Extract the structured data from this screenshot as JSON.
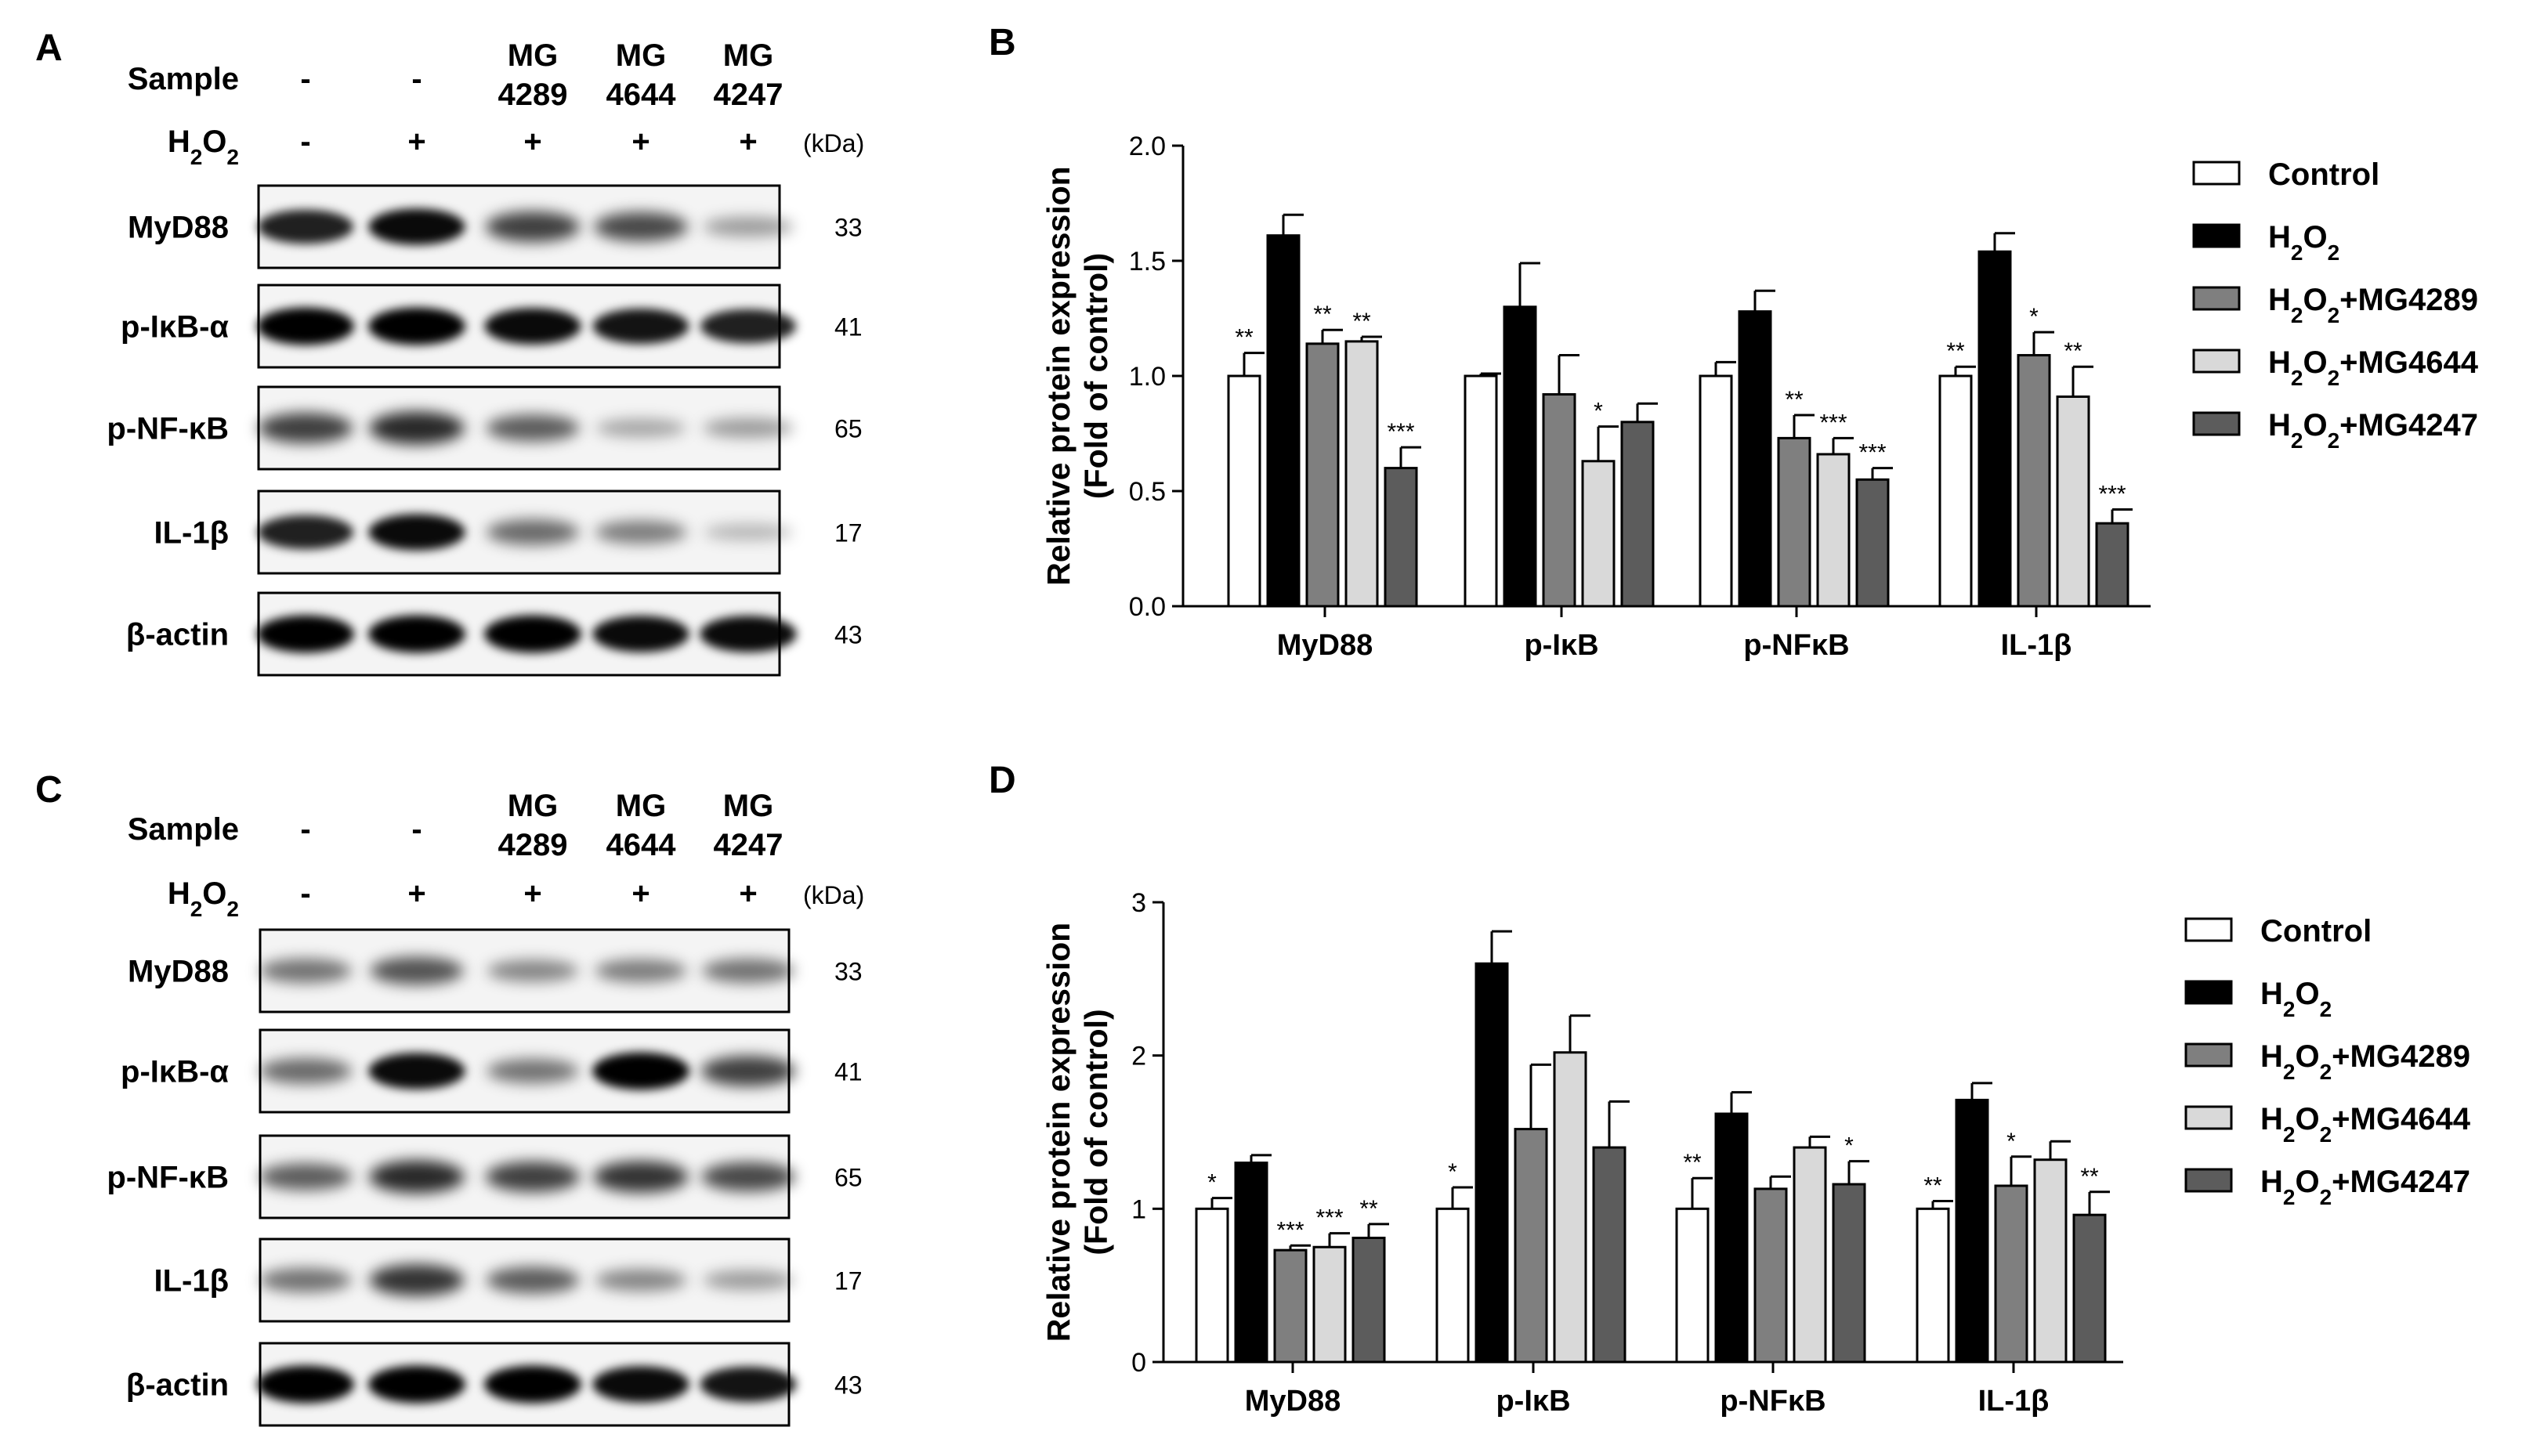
{
  "figure": {
    "panels": {
      "A": {
        "label": "A",
        "sample_header": "Sample",
        "sample_values": [
          "-",
          "-",
          "MG\n4289",
          "MG\n4644",
          "MG\n4247"
        ],
        "h2o2_header": "H2O2",
        "h2o2_values": [
          "-",
          "+",
          "+",
          "+",
          "+"
        ],
        "kda_header": "(kDa)",
        "blots": [
          {
            "name": "MyD88",
            "kda": "33",
            "intensities": [
              0.85,
              0.95,
              0.7,
              0.65,
              0.25
            ]
          },
          {
            "name": "p-IκB-α",
            "kda": "41",
            "intensities": [
              1.0,
              1.0,
              0.95,
              0.9,
              0.85
            ]
          },
          {
            "name": "p-NF-κB",
            "kda": "65",
            "intensities": [
              0.7,
              0.8,
              0.55,
              0.2,
              0.25
            ]
          },
          {
            "name": "IL-1β",
            "kda": "17",
            "intensities": [
              0.85,
              0.95,
              0.5,
              0.4,
              0.12
            ]
          },
          {
            "name": "β-actin",
            "kda": "43",
            "intensities": [
              1.0,
              1.0,
              1.0,
              0.95,
              0.95
            ]
          }
        ]
      },
      "C": {
        "label": "C",
        "sample_header": "Sample",
        "sample_values": [
          "-",
          "-",
          "MG\n4289",
          "MG\n4644",
          "MG\n4247"
        ],
        "h2o2_header": "H2O2",
        "h2o2_values": [
          "-",
          "+",
          "+",
          "+",
          "+"
        ],
        "kda_header": "(kDa)",
        "blots": [
          {
            "name": "MyD88",
            "kda": "33",
            "intensities": [
              0.45,
              0.6,
              0.35,
              0.4,
              0.45
            ]
          },
          {
            "name": "p-IκB-α",
            "kda": "41",
            "intensities": [
              0.5,
              0.95,
              0.45,
              1.0,
              0.7
            ]
          },
          {
            "name": "p-NF-κB",
            "kda": "65",
            "intensities": [
              0.55,
              0.8,
              0.7,
              0.75,
              0.65
            ]
          },
          {
            "name": "IL-1β",
            "kda": "17",
            "intensities": [
              0.45,
              0.75,
              0.55,
              0.35,
              0.25
            ]
          },
          {
            "name": "β-actin",
            "kda": "43",
            "intensities": [
              1.0,
              1.0,
              1.0,
              0.95,
              0.9
            ]
          }
        ]
      },
      "B": {
        "label": "B"
      },
      "D": {
        "label": "D"
      }
    },
    "colors": {
      "Control": "#ffffff",
      "H2O2": "#000000",
      "H2O2+MG4289": "#7f7f7f",
      "H2O2+MG4644": "#d9d9d9",
      "H2O2+MG4247": "#5c5c5c",
      "band": "#000000"
    }
  },
  "chart_data": [
    {
      "panel": "B",
      "type": "bar",
      "ylabel": "Relative protein expression\n(Fold of control)",
      "ylim": [
        0,
        2.0
      ],
      "yticks": [
        "0.0",
        "0.5",
        "1.0",
        "1.5",
        "2.0"
      ],
      "ytick_values": [
        0,
        0.5,
        1.0,
        1.5,
        2.0
      ],
      "categories": [
        "MyD88",
        "p-IκB",
        "p-NFκB",
        "IL-1β"
      ],
      "legend": [
        "Control",
        "H2O2",
        "H2O2+MG4289",
        "H2O2+MG4644",
        "H2O2+MG4247"
      ],
      "legend_position": "right",
      "series": [
        {
          "name": "Control",
          "values": [
            1.0,
            1.0,
            1.0,
            1.0
          ],
          "errors": [
            0.1,
            0.01,
            0.06,
            0.04
          ],
          "sig": [
            "**",
            "",
            "",
            "**"
          ]
        },
        {
          "name": "H2O2",
          "values": [
            1.61,
            1.3,
            1.28,
            1.54
          ],
          "errors": [
            0.09,
            0.19,
            0.09,
            0.08
          ],
          "sig": [
            "",
            "",
            "",
            ""
          ]
        },
        {
          "name": "H2O2+MG4289",
          "values": [
            1.14,
            0.92,
            0.73,
            1.09
          ],
          "errors": [
            0.06,
            0.17,
            0.1,
            0.1
          ],
          "sig": [
            "**",
            "",
            "**",
            "*"
          ]
        },
        {
          "name": "H2O2+MG4644",
          "values": [
            1.15,
            0.63,
            0.66,
            0.91
          ],
          "errors": [
            0.02,
            0.15,
            0.07,
            0.13
          ],
          "sig": [
            "**",
            "*",
            "***",
            "**"
          ]
        },
        {
          "name": "H2O2+MG4247",
          "values": [
            0.6,
            0.8,
            0.55,
            0.36
          ],
          "errors": [
            0.09,
            0.08,
            0.05,
            0.06
          ],
          "sig": [
            "***",
            "",
            "***",
            "***"
          ]
        }
      ]
    },
    {
      "panel": "D",
      "type": "bar",
      "ylabel": "Relative protein expression\n(Fold of control)",
      "ylim": [
        0,
        3
      ],
      "yticks": [
        "0",
        "1",
        "2",
        "3"
      ],
      "ytick_values": [
        0,
        1,
        2,
        3
      ],
      "categories": [
        "MyD88",
        "p-IκB",
        "p-NFκB",
        "IL-1β"
      ],
      "legend": [
        "Control",
        "H2O2",
        "H2O2+MG4289",
        "H2O2+MG4644",
        "H2O2+MG4247"
      ],
      "legend_position": "right",
      "series": [
        {
          "name": "Control",
          "values": [
            1.0,
            1.0,
            1.0,
            1.0
          ],
          "errors": [
            0.07,
            0.14,
            0.2,
            0.05
          ],
          "sig": [
            "*",
            "*",
            "**",
            "**"
          ]
        },
        {
          "name": "H2O2",
          "values": [
            1.3,
            2.6,
            1.62,
            1.71
          ],
          "errors": [
            0.05,
            0.21,
            0.14,
            0.11
          ],
          "sig": [
            "",
            "",
            "",
            ""
          ]
        },
        {
          "name": "H2O2+MG4289",
          "values": [
            0.73,
            1.52,
            1.13,
            1.15
          ],
          "errors": [
            0.03,
            0.42,
            0.08,
            0.19
          ],
          "sig": [
            "***",
            "",
            "",
            "*"
          ]
        },
        {
          "name": "H2O2+MG4644",
          "values": [
            0.75,
            2.02,
            1.4,
            1.32
          ],
          "errors": [
            0.09,
            0.24,
            0.07,
            0.12
          ],
          "sig": [
            "***",
            "",
            "",
            ""
          ]
        },
        {
          "name": "H2O2+MG4247",
          "values": [
            0.81,
            1.4,
            1.16,
            0.96
          ],
          "errors": [
            0.09,
            0.3,
            0.15,
            0.15
          ],
          "sig": [
            "**",
            "",
            "*",
            "**"
          ]
        }
      ]
    }
  ]
}
